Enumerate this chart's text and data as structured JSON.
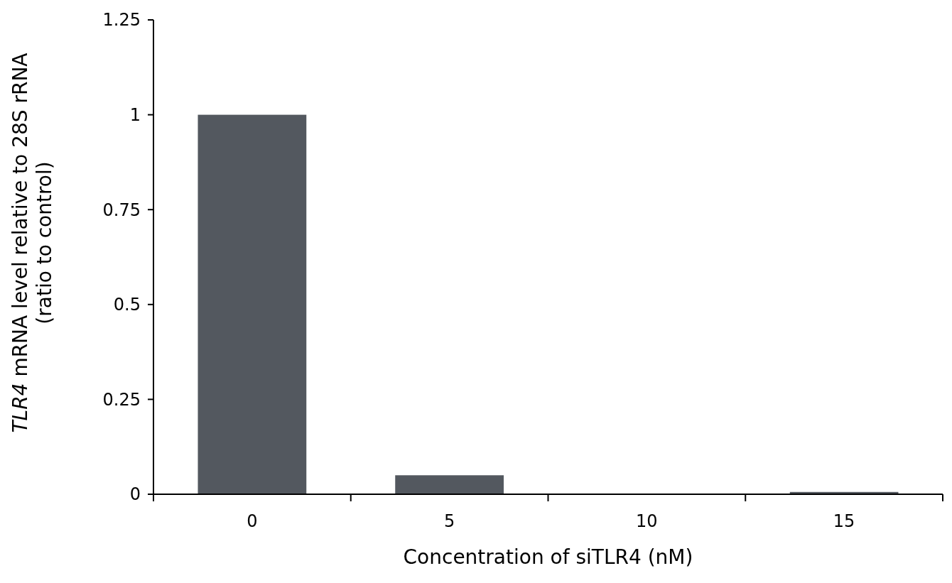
{
  "chart_data": {
    "type": "bar",
    "xlabel": "Concentration of siTLR4 (nM)",
    "ylabel": "TLR4 mRNA level relative to 28S rRNA\n(ratio to control)",
    "categories": [
      "0",
      "5",
      "10",
      "15"
    ],
    "values": [
      1,
      0.05,
      0,
      0.006
    ],
    "color": "#53585f",
    "ylim": [
      0,
      1.25
    ],
    "yticks": [
      0,
      0.25,
      0.5,
      0.75,
      1,
      1.25
    ],
    "grid": false
  }
}
